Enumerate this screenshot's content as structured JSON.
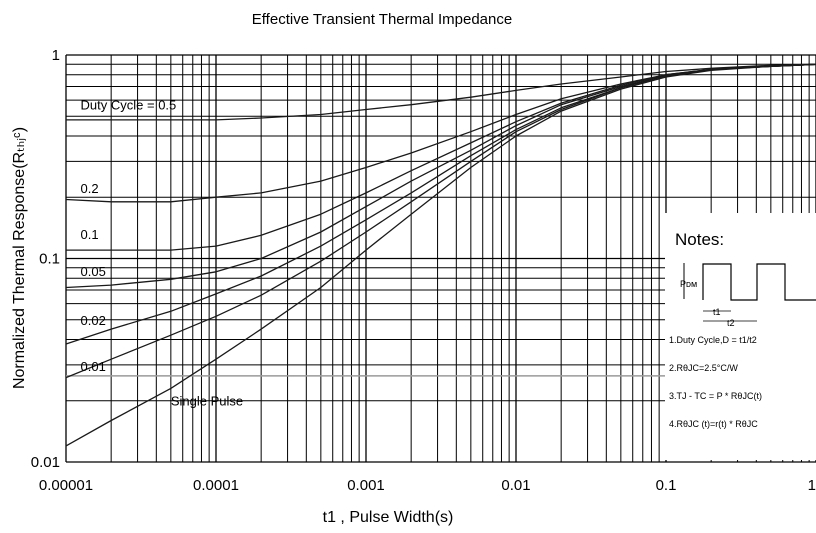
{
  "chart_data": {
    "type": "line",
    "title": "Effective Transient Thermal Impedance",
    "xlabel": "t1 , Pulse Width(s)",
    "ylabel": "Normalized Thermal Response(Rₜₕⱼᶜ)",
    "x_scale": "log",
    "y_scale": "log",
    "xlim": [
      1e-05,
      1
    ],
    "ylim": [
      0.01,
      1
    ],
    "grid": true,
    "x_ticks": [
      {
        "value": 1e-05,
        "label": "0.00001"
      },
      {
        "value": 0.0001,
        "label": "0.0001"
      },
      {
        "value": 0.001,
        "label": "0.001"
      },
      {
        "value": 0.01,
        "label": "0.01"
      },
      {
        "value": 0.1,
        "label": "0.1"
      },
      {
        "value": 1,
        "label": "1"
      }
    ],
    "y_ticks": [
      {
        "value": 0.01,
        "label": "0.01"
      },
      {
        "value": 0.1,
        "label": "0.1"
      },
      {
        "value": 1,
        "label": "1"
      }
    ],
    "series": [
      {
        "name": "Duty Cycle = 0.5",
        "x": [
          1e-05,
          2e-05,
          5e-05,
          0.0001,
          0.0002,
          0.0005,
          0.001,
          0.002,
          0.005,
          0.01,
          0.02,
          0.05,
          0.1,
          0.2,
          0.5,
          1
        ],
        "y": [
          0.48,
          0.48,
          0.48,
          0.48,
          0.49,
          0.51,
          0.54,
          0.57,
          0.62,
          0.67,
          0.72,
          0.78,
          0.83,
          0.86,
          0.89,
          0.9
        ]
      },
      {
        "name": "0.2",
        "x": [
          1e-05,
          2e-05,
          5e-05,
          0.0001,
          0.0002,
          0.0005,
          0.001,
          0.002,
          0.005,
          0.01,
          0.02,
          0.05,
          0.1,
          0.2,
          0.5,
          1
        ],
        "y": [
          0.195,
          0.19,
          0.19,
          0.2,
          0.21,
          0.24,
          0.28,
          0.33,
          0.42,
          0.51,
          0.61,
          0.72,
          0.8,
          0.85,
          0.88,
          0.9
        ]
      },
      {
        "name": "0.1",
        "x": [
          1e-05,
          2e-05,
          5e-05,
          0.0001,
          0.0002,
          0.0005,
          0.001,
          0.002,
          0.005,
          0.01,
          0.02,
          0.05,
          0.1,
          0.2,
          0.5,
          1
        ],
        "y": [
          0.11,
          0.11,
          0.11,
          0.115,
          0.13,
          0.165,
          0.21,
          0.27,
          0.37,
          0.47,
          0.58,
          0.71,
          0.8,
          0.85,
          0.88,
          0.9
        ]
      },
      {
        "name": "0.05",
        "x": [
          1e-05,
          2e-05,
          5e-05,
          0.0001,
          0.0002,
          0.0005,
          0.001,
          0.002,
          0.005,
          0.01,
          0.02,
          0.05,
          0.1,
          0.2,
          0.5,
          1
        ],
        "y": [
          0.072,
          0.074,
          0.079,
          0.086,
          0.1,
          0.135,
          0.18,
          0.24,
          0.34,
          0.45,
          0.57,
          0.7,
          0.79,
          0.85,
          0.88,
          0.9
        ]
      },
      {
        "name": "0.02",
        "x": [
          1e-05,
          2e-05,
          5e-05,
          0.0001,
          0.0002,
          0.0005,
          0.001,
          0.002,
          0.005,
          0.01,
          0.02,
          0.05,
          0.1,
          0.2,
          0.5,
          1
        ],
        "y": [
          0.038,
          0.045,
          0.055,
          0.067,
          0.082,
          0.115,
          0.155,
          0.21,
          0.32,
          0.43,
          0.55,
          0.69,
          0.79,
          0.85,
          0.88,
          0.9
        ]
      },
      {
        "name": "0.01",
        "x": [
          1e-05,
          2e-05,
          5e-05,
          0.0001,
          0.0002,
          0.0005,
          0.001,
          0.002,
          0.005,
          0.01,
          0.02,
          0.05,
          0.1,
          0.2,
          0.5,
          1
        ],
        "y": [
          0.026,
          0.032,
          0.042,
          0.052,
          0.066,
          0.097,
          0.135,
          0.19,
          0.3,
          0.42,
          0.54,
          0.69,
          0.79,
          0.85,
          0.88,
          0.9
        ]
      },
      {
        "name": "Single Pulse",
        "x": [
          1e-05,
          2e-05,
          5e-05,
          0.0001,
          0.0002,
          0.0005,
          0.001,
          0.002,
          0.005,
          0.01,
          0.02,
          0.05,
          0.1,
          0.2,
          0.5,
          1
        ],
        "y": [
          0.012,
          0.016,
          0.023,
          0.032,
          0.045,
          0.072,
          0.11,
          0.165,
          0.28,
          0.4,
          0.53,
          0.68,
          0.78,
          0.84,
          0.88,
          0.9
        ]
      }
    ],
    "curve_labels": [
      {
        "text": "Duty Cycle = 0.5",
        "x": 1.25e-05,
        "y": 0.54
      },
      {
        "text": "0.2",
        "x": 1.25e-05,
        "y": 0.21
      },
      {
        "text": "0.1",
        "x": 1.25e-05,
        "y": 0.125
      },
      {
        "text": "0.05",
        "x": 1.25e-05,
        "y": 0.082
      },
      {
        "text": "0.02",
        "x": 1.25e-05,
        "y": 0.047
      },
      {
        "text": "0.01",
        "x": 1.25e-05,
        "y": 0.028
      },
      {
        "text": "Single Pulse",
        "x": 5e-05,
        "y": 0.019
      }
    ],
    "reference_line": {
      "y": 0.0265,
      "color": "#9a9a9a"
    },
    "notes": {
      "title": "Notes:",
      "waveform_labels": [
        "Pᴅᴍ",
        "t1",
        "t2"
      ],
      "items": [
        "1.Duty Cycle,D = t1/t2",
        "2.RθJC=2.5°C/W",
        "3.TJ - TC = P * RθJC(t)",
        "4.RθJC (t)=r(t) * RθJC"
      ]
    }
  }
}
